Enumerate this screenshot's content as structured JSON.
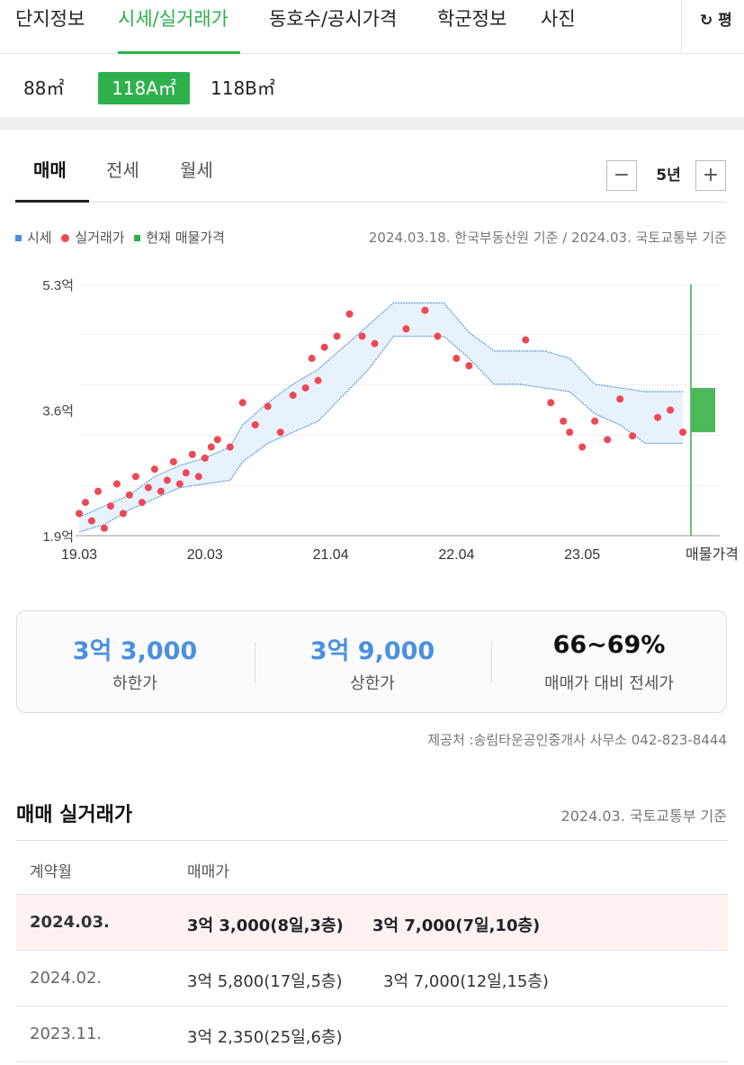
{
  "main_tabs": [
    "단지정보",
    "시세/실거래가",
    "동호수/공시가격",
    "학군정보",
    "사진"
  ],
  "refresh_label": "평",
  "area_options": [
    "88㎡",
    "118A㎡",
    "118B㎡"
  ],
  "trade_tabs": [
    "매매",
    "전세",
    "월세"
  ],
  "period": {
    "minus": "−",
    "value": "5년",
    "plus": "+"
  },
  "legend": {
    "market": "시세",
    "actual": "실거래가",
    "listing": "현재 매물가격"
  },
  "basis_text": "2024.03.18. 한국부동산원 기준 / 2024.03. 국토교통부 기준",
  "colors": {
    "accent": "#2eb14d",
    "band": "#4a90e2",
    "dots": "#ef4753",
    "value_blue": "#4a90e2"
  },
  "chart_data": {
    "type": "scatter",
    "y_ticks": [
      "5.3억",
      "3.6억",
      "1.9억"
    ],
    "ylim": [
      1.9,
      5.3
    ],
    "x_ticks": [
      "19.03",
      "20.03",
      "21.04",
      "22.04",
      "23.05",
      "매물가격"
    ],
    "band_lower": [
      [
        2019.2,
        1.95
      ],
      [
        2019.4,
        2.05
      ],
      [
        2019.6,
        2.25
      ],
      [
        2019.8,
        2.4
      ],
      [
        2020.0,
        2.55
      ],
      [
        2020.2,
        2.6
      ],
      [
        2020.4,
        2.65
      ],
      [
        2020.5,
        2.9
      ],
      [
        2020.7,
        3.15
      ],
      [
        2020.9,
        3.3
      ],
      [
        2021.1,
        3.45
      ],
      [
        2021.3,
        3.8
      ],
      [
        2021.5,
        4.15
      ],
      [
        2021.7,
        4.6
      ],
      [
        2021.9,
        4.6
      ],
      [
        2022.1,
        4.6
      ],
      [
        2022.3,
        4.3
      ],
      [
        2022.5,
        3.95
      ],
      [
        2022.7,
        3.95
      ],
      [
        2022.9,
        3.9
      ],
      [
        2023.1,
        3.85
      ],
      [
        2023.3,
        3.55
      ],
      [
        2023.5,
        3.4
      ],
      [
        2023.7,
        3.15
      ],
      [
        2024.0,
        3.15
      ]
    ],
    "band_upper": [
      [
        2019.2,
        2.15
      ],
      [
        2019.4,
        2.3
      ],
      [
        2019.6,
        2.45
      ],
      [
        2019.8,
        2.7
      ],
      [
        2020.0,
        2.85
      ],
      [
        2020.2,
        2.95
      ],
      [
        2020.4,
        3.1
      ],
      [
        2020.5,
        3.4
      ],
      [
        2020.7,
        3.7
      ],
      [
        2020.9,
        3.95
      ],
      [
        2021.1,
        4.15
      ],
      [
        2021.3,
        4.45
      ],
      [
        2021.5,
        4.75
      ],
      [
        2021.7,
        5.05
      ],
      [
        2021.9,
        5.05
      ],
      [
        2022.1,
        5.05
      ],
      [
        2022.3,
        4.65
      ],
      [
        2022.5,
        4.4
      ],
      [
        2022.7,
        4.4
      ],
      [
        2022.9,
        4.4
      ],
      [
        2023.1,
        4.3
      ],
      [
        2023.3,
        3.95
      ],
      [
        2023.5,
        3.9
      ],
      [
        2023.7,
        3.85
      ],
      [
        2024.0,
        3.85
      ]
    ],
    "actual_trades": [
      [
        2019.2,
        2.2
      ],
      [
        2019.25,
        2.35
      ],
      [
        2019.3,
        2.1
      ],
      [
        2019.35,
        2.5
      ],
      [
        2019.4,
        2.0
      ],
      [
        2019.45,
        2.3
      ],
      [
        2019.5,
        2.6
      ],
      [
        2019.55,
        2.2
      ],
      [
        2019.6,
        2.45
      ],
      [
        2019.65,
        2.7
      ],
      [
        2019.7,
        2.35
      ],
      [
        2019.75,
        2.55
      ],
      [
        2019.8,
        2.8
      ],
      [
        2019.85,
        2.5
      ],
      [
        2019.9,
        2.65
      ],
      [
        2019.95,
        2.9
      ],
      [
        2020.0,
        2.6
      ],
      [
        2020.05,
        2.75
      ],
      [
        2020.1,
        3.0
      ],
      [
        2020.15,
        2.7
      ],
      [
        2020.2,
        2.95
      ],
      [
        2020.25,
        3.1
      ],
      [
        2020.3,
        3.2
      ],
      [
        2020.4,
        3.1
      ],
      [
        2020.5,
        3.7
      ],
      [
        2020.6,
        3.4
      ],
      [
        2020.7,
        3.65
      ],
      [
        2020.8,
        3.3
      ],
      [
        2020.9,
        3.8
      ],
      [
        2021.0,
        3.9
      ],
      [
        2021.05,
        4.3
      ],
      [
        2021.1,
        4.0
      ],
      [
        2021.15,
        4.45
      ],
      [
        2021.25,
        4.6
      ],
      [
        2021.35,
        4.9
      ],
      [
        2021.45,
        4.6
      ],
      [
        2021.55,
        4.5
      ],
      [
        2021.8,
        4.7
      ],
      [
        2021.95,
        4.95
      ],
      [
        2022.05,
        4.6
      ],
      [
        2022.2,
        4.3
      ],
      [
        2022.3,
        4.2
      ],
      [
        2022.75,
        4.55
      ],
      [
        2022.95,
        3.7
      ],
      [
        2023.05,
        3.45
      ],
      [
        2023.1,
        3.3
      ],
      [
        2023.2,
        3.1
      ],
      [
        2023.3,
        3.45
      ],
      [
        2023.4,
        3.2
      ],
      [
        2023.5,
        3.75
      ],
      [
        2023.6,
        3.25
      ],
      [
        2023.8,
        3.5
      ],
      [
        2023.9,
        3.6
      ],
      [
        2024.0,
        3.3
      ]
    ],
    "listing_range": [
      3.3,
      3.9
    ]
  },
  "summary": [
    {
      "value": "3억 3,000",
      "label": "하한가"
    },
    {
      "value": "3억 9,000",
      "label": "상한가"
    },
    {
      "value": "66~69%",
      "label": "매매가 대비 전세가"
    }
  ],
  "provider": "제공처 :송림타운공인중개사 사무소 042-823-8444",
  "trade_section": {
    "title": "매매 실거래가",
    "basis": "2024.03. 국토교통부 기준"
  },
  "table": {
    "headers": [
      "계약월",
      "매매가"
    ],
    "rows": [
      {
        "month": "2024.03.",
        "deals": [
          "3억 3,000(8일,3층)",
          "3억 7,000(7일,10층)"
        ]
      },
      {
        "month": "2024.02.",
        "deals": [
          "3억 5,800(17일,5층)",
          "3억 7,000(12일,15층)"
        ]
      },
      {
        "month": "2023.11.",
        "deals": [
          "3억 2,350(25일,6층)",
          ""
        ]
      }
    ]
  }
}
